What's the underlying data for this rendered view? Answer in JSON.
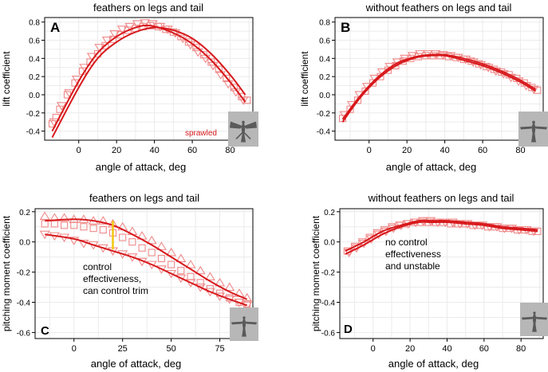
{
  "colors": {
    "accent": "#d7191c",
    "marker": "#f08a8a",
    "grid": "#ebebeb",
    "axis": "#000000",
    "annotation_line": "#f2c811",
    "inset_bg": "#b7b7b7",
    "bird": "#5a5a5a"
  },
  "chart_data": [
    {
      "id": "A",
      "type": "scatter",
      "title": "feathers on legs and tail",
      "panel_label": "A",
      "xlabel": "angle of attack, deg",
      "ylabel": "lift coefficient",
      "xlim": [
        -18,
        92
      ],
      "ylim": [
        -0.5,
        0.85
      ],
      "xticks": [
        0,
        20,
        40,
        60,
        80
      ],
      "yticks": [
        -0.4,
        -0.2,
        0.0,
        0.2,
        0.4,
        0.6,
        0.8
      ],
      "ytick_labels": [
        "-0.4",
        "-0.2",
        "0.0",
        "0.2",
        "0.4",
        "0.6",
        "0.8"
      ],
      "grid": true,
      "annotation": "sprawled",
      "fit_curves": [
        {
          "name": "fit-1",
          "x": [
            -14,
            0,
            10,
            20,
            30,
            38,
            50,
            60,
            70,
            80,
            88
          ],
          "y": [
            -0.4,
            0.15,
            0.46,
            0.64,
            0.74,
            0.76,
            0.68,
            0.56,
            0.38,
            0.14,
            -0.08
          ]
        },
        {
          "name": "fit-2",
          "x": [
            -14,
            0,
            10,
            20,
            30,
            40,
            50,
            60,
            70,
            80,
            88
          ],
          "y": [
            -0.47,
            0.08,
            0.4,
            0.58,
            0.69,
            0.74,
            0.71,
            0.62,
            0.45,
            0.22,
            0.0
          ]
        }
      ],
      "series": [
        {
          "name": "squares",
          "marker": "square",
          "x": [
            -14,
            -12,
            -10,
            -6,
            -2,
            2,
            6,
            10,
            14,
            18,
            22,
            26,
            30,
            34,
            38,
            42,
            46,
            50,
            54,
            58,
            62,
            66,
            70,
            74,
            78,
            82,
            86,
            89
          ],
          "y": [
            -0.32,
            -0.25,
            -0.16,
            0.0,
            0.13,
            0.26,
            0.36,
            0.45,
            0.54,
            0.61,
            0.66,
            0.71,
            0.73,
            0.75,
            0.76,
            0.75,
            0.72,
            0.69,
            0.64,
            0.58,
            0.52,
            0.44,
            0.36,
            0.28,
            0.18,
            0.08,
            -0.02,
            -0.06
          ]
        },
        {
          "name": "triangles",
          "marker": "triangle-down",
          "x": [
            -13,
            -9,
            -5,
            -1,
            3,
            7,
            11,
            15,
            19,
            23,
            27,
            31,
            35,
            39,
            43,
            47,
            51,
            55,
            59,
            63,
            67,
            71,
            75,
            79,
            83,
            87
          ],
          "y": [
            -0.3,
            -0.12,
            0.02,
            0.17,
            0.3,
            0.42,
            0.52,
            0.6,
            0.67,
            0.72,
            0.75,
            0.78,
            0.79,
            0.78,
            0.75,
            0.72,
            0.68,
            0.62,
            0.55,
            0.47,
            0.4,
            0.32,
            0.22,
            0.12,
            0.03,
            -0.06
          ]
        }
      ]
    },
    {
      "id": "B",
      "type": "scatter",
      "title": "without feathers on legs and tail",
      "panel_label": "B",
      "xlabel": "angle of attack, deg",
      "ylabel": "lift coefficient",
      "xlim": [
        -18,
        92
      ],
      "ylim": [
        -0.5,
        0.85
      ],
      "xticks": [
        0,
        20,
        40,
        60,
        80
      ],
      "yticks": [
        -0.4,
        -0.2,
        0.0,
        0.2,
        0.4,
        0.6,
        0.8
      ],
      "ytick_labels": [
        "-0.4",
        "-0.2",
        "0.0",
        "0.2",
        "0.4",
        "0.6",
        "0.8"
      ],
      "grid": true,
      "fit_curves": [
        {
          "name": "fit-1",
          "x": [
            -14,
            -5,
            5,
            15,
            25,
            32,
            40,
            50,
            60,
            70,
            80,
            88
          ],
          "y": [
            -0.3,
            -0.04,
            0.18,
            0.33,
            0.41,
            0.43,
            0.43,
            0.38,
            0.32,
            0.24,
            0.14,
            0.04
          ]
        },
        {
          "name": "fit-2",
          "x": [
            -14,
            -5,
            5,
            15,
            25,
            32,
            40,
            50,
            60,
            70,
            80,
            88
          ],
          "y": [
            -0.27,
            -0.02,
            0.2,
            0.35,
            0.42,
            0.44,
            0.44,
            0.4,
            0.34,
            0.26,
            0.16,
            0.06
          ]
        }
      ],
      "series": [
        {
          "name": "squares",
          "marker": "square",
          "x": [
            -14,
            -10,
            -6,
            -2,
            2,
            6,
            10,
            14,
            18,
            22,
            26,
            30,
            34,
            38,
            42,
            46,
            50,
            54,
            58,
            62,
            66,
            70,
            74,
            78,
            82,
            86,
            89
          ],
          "y": [
            -0.26,
            -0.16,
            -0.06,
            0.04,
            0.13,
            0.2,
            0.27,
            0.32,
            0.37,
            0.4,
            0.42,
            0.43,
            0.43,
            0.43,
            0.42,
            0.41,
            0.39,
            0.37,
            0.34,
            0.31,
            0.28,
            0.25,
            0.22,
            0.18,
            0.13,
            0.08,
            0.05
          ]
        },
        {
          "name": "triangles",
          "marker": "triangle-down",
          "x": [
            -13,
            -9,
            -5,
            -1,
            3,
            7,
            11,
            15,
            19,
            23,
            27,
            31,
            35,
            39,
            43,
            47,
            51,
            55,
            59,
            63,
            67,
            71,
            75,
            79,
            83,
            87
          ],
          "y": [
            -0.22,
            -0.11,
            0.0,
            0.09,
            0.18,
            0.25,
            0.31,
            0.36,
            0.4,
            0.43,
            0.45,
            0.45,
            0.45,
            0.44,
            0.43,
            0.41,
            0.39,
            0.36,
            0.33,
            0.3,
            0.26,
            0.23,
            0.19,
            0.15,
            0.1,
            0.06
          ]
        }
      ]
    },
    {
      "id": "C",
      "type": "scatter",
      "title": "feathers on legs and tail",
      "panel_label": "C",
      "xlabel": "angle of attack, deg",
      "ylabel": "pitching moment coefficient",
      "xlim": [
        -20,
        92
      ],
      "ylim": [
        -0.64,
        0.22
      ],
      "xticks": [
        0,
        25,
        50,
        75
      ],
      "yticks": [
        -0.6,
        -0.4,
        -0.2,
        0.0,
        0.2
      ],
      "ytick_labels": [
        "-0.6",
        "-0.4",
        "-0.2",
        "0.0",
        "0.2"
      ],
      "grid": true,
      "annotation": "control\neffectiveness,\ncan control trim",
      "trim_marker": {
        "x": 20,
        "y_low": -0.05,
        "y_high": 0.14
      },
      "fit_curves": [
        {
          "name": "fit-upper",
          "x": [
            -15,
            0,
            10,
            20,
            30,
            40,
            50,
            60,
            70,
            80,
            89
          ],
          "y": [
            0.14,
            0.15,
            0.14,
            0.11,
            0.05,
            -0.02,
            -0.1,
            -0.18,
            -0.26,
            -0.33,
            -0.38
          ]
        },
        {
          "name": "fit-lower",
          "x": [
            -15,
            0,
            10,
            20,
            30,
            40,
            50,
            60,
            70,
            80,
            89
          ],
          "y": [
            0.05,
            0.02,
            -0.02,
            -0.06,
            -0.1,
            -0.15,
            -0.21,
            -0.27,
            -0.33,
            -0.38,
            -0.42
          ]
        }
      ],
      "series": [
        {
          "name": "upper-triangles",
          "marker": "triangle-up",
          "x": [
            -15,
            -10,
            -5,
            0,
            5,
            10,
            15,
            20,
            25,
            30,
            35,
            40,
            45,
            50,
            55,
            60,
            65,
            70,
            75,
            80,
            85,
            89
          ],
          "y": [
            0.17,
            0.16,
            0.16,
            0.15,
            0.15,
            0.14,
            0.14,
            0.12,
            0.1,
            0.07,
            0.04,
            0.01,
            -0.03,
            -0.07,
            -0.11,
            -0.15,
            -0.19,
            -0.23,
            -0.27,
            -0.3,
            -0.34,
            -0.37
          ]
        },
        {
          "name": "squares",
          "marker": "square",
          "x": [
            -15,
            -10,
            -5,
            0,
            5,
            10,
            15,
            20,
            25,
            30,
            35,
            40,
            45,
            50,
            55,
            60,
            65,
            70,
            75,
            80,
            85,
            89
          ],
          "y": [
            0.12,
            0.12,
            0.11,
            0.11,
            0.1,
            0.09,
            0.08,
            0.06,
            0.03,
            0.0,
            -0.04,
            -0.07,
            -0.11,
            -0.15,
            -0.19,
            -0.23,
            -0.27,
            -0.31,
            -0.34,
            -0.37,
            -0.4,
            -0.41
          ]
        },
        {
          "name": "lower-triangles",
          "marker": "triangle-down",
          "x": [
            -15,
            -10,
            -5,
            0,
            5,
            10,
            15,
            20,
            25,
            30,
            35,
            40,
            45,
            50,
            55,
            60,
            65,
            70,
            75,
            80,
            85,
            89
          ],
          "y": [
            0.05,
            0.04,
            0.03,
            0.01,
            -0.01,
            -0.02,
            -0.04,
            -0.06,
            -0.08,
            -0.1,
            -0.13,
            -0.15,
            -0.18,
            -0.21,
            -0.24,
            -0.27,
            -0.3,
            -0.33,
            -0.36,
            -0.38,
            -0.4,
            -0.42
          ]
        }
      ]
    },
    {
      "id": "D",
      "type": "scatter",
      "title": "without feathers on legs and tail",
      "panel_label": "D",
      "xlabel": "angle of attack, deg",
      "ylabel": "pitching moment coefficient",
      "xlim": [
        -18,
        92
      ],
      "ylim": [
        -0.64,
        0.22
      ],
      "xticks": [
        0,
        20,
        40,
        60,
        80
      ],
      "yticks": [
        -0.6,
        -0.4,
        -0.2,
        0.0,
        0.2
      ],
      "ytick_labels": [
        "-0.6",
        "-0.4",
        "-0.2",
        "0.0",
        "0.2"
      ],
      "grid": true,
      "annotation": "no control\neffectiveness\nand unstable",
      "fit_curves": [
        {
          "name": "fit-1",
          "x": [
            -15,
            -5,
            5,
            15,
            25,
            32,
            40,
            50,
            60,
            70,
            80,
            89
          ],
          "y": [
            -0.08,
            -0.02,
            0.05,
            0.1,
            0.13,
            0.13,
            0.13,
            0.12,
            0.11,
            0.09,
            0.08,
            0.07
          ]
        },
        {
          "name": "fit-2",
          "x": [
            -15,
            -5,
            5,
            15,
            25,
            32,
            40,
            50,
            60,
            70,
            80,
            89
          ],
          "y": [
            -0.06,
            0.0,
            0.07,
            0.11,
            0.14,
            0.14,
            0.14,
            0.13,
            0.12,
            0.1,
            0.09,
            0.08
          ]
        }
      ],
      "series": [
        {
          "name": "squares",
          "marker": "square",
          "x": [
            -14,
            -10,
            -6,
            -2,
            2,
            6,
            10,
            14,
            18,
            22,
            26,
            30,
            34,
            38,
            42,
            46,
            50,
            54,
            58,
            62,
            66,
            70,
            74,
            78,
            82,
            86,
            89
          ],
          "y": [
            -0.06,
            -0.03,
            0.0,
            0.03,
            0.06,
            0.08,
            0.1,
            0.11,
            0.12,
            0.13,
            0.13,
            0.13,
            0.13,
            0.13,
            0.12,
            0.12,
            0.12,
            0.11,
            0.11,
            0.1,
            0.1,
            0.09,
            0.09,
            0.08,
            0.08,
            0.07,
            0.07
          ]
        },
        {
          "name": "triangles",
          "marker": "triangle-down",
          "x": [
            -13,
            -9,
            -5,
            -1,
            3,
            7,
            11,
            15,
            19,
            23,
            27,
            31,
            35,
            39,
            43,
            47,
            51,
            55,
            59,
            63,
            67,
            71,
            75,
            79,
            83,
            87
          ],
          "y": [
            -0.07,
            -0.04,
            -0.01,
            0.02,
            0.05,
            0.07,
            0.09,
            0.11,
            0.12,
            0.13,
            0.14,
            0.14,
            0.13,
            0.13,
            0.13,
            0.12,
            0.12,
            0.11,
            0.11,
            0.1,
            0.1,
            0.09,
            0.09,
            0.08,
            0.08,
            0.07
          ]
        }
      ]
    }
  ]
}
